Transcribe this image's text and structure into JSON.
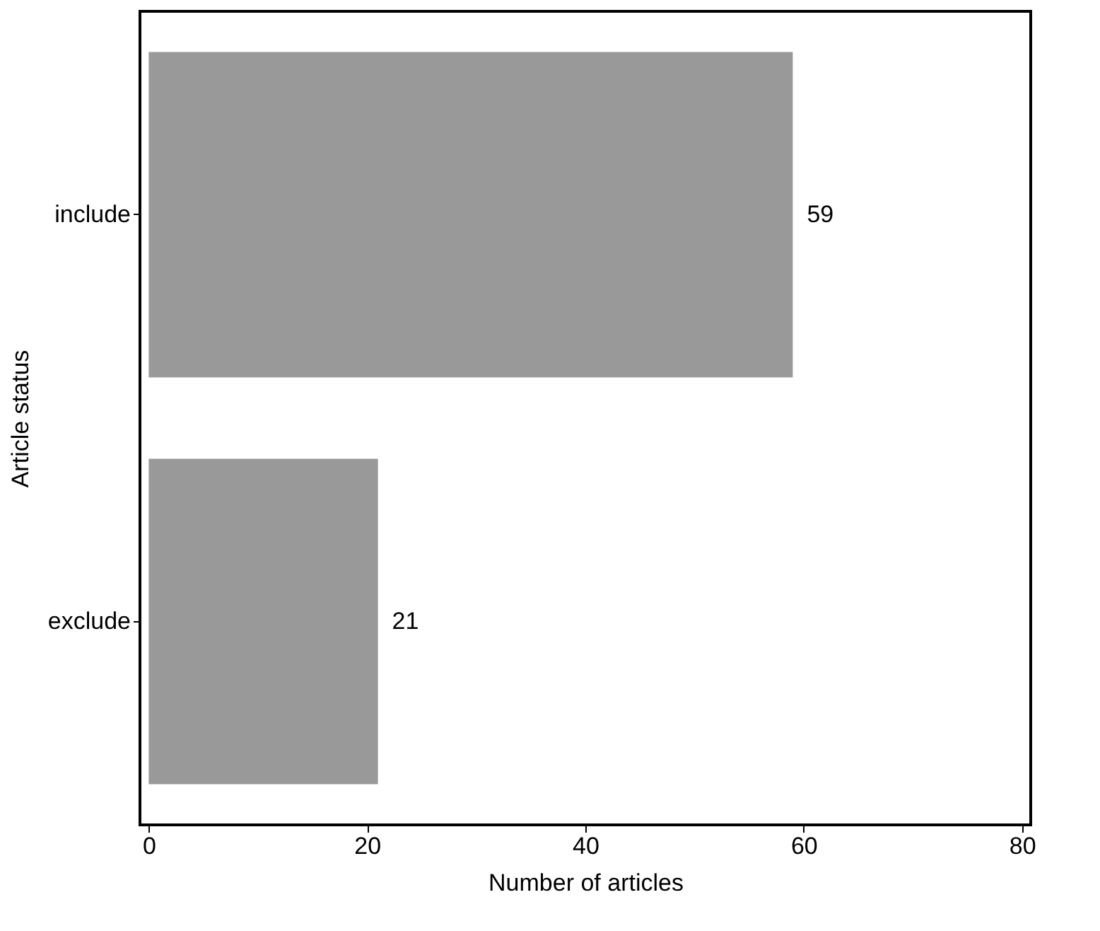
{
  "chart_data": {
    "type": "bar",
    "orientation": "horizontal",
    "categories": [
      "include",
      "exclude"
    ],
    "values": [
      59,
      21
    ],
    "color": "#999999",
    "xlabel": "Number of articles",
    "ylabel": "Article status",
    "xlim": [
      -0.8,
      80.8
    ],
    "xticks": [
      0,
      20,
      40,
      60,
      80
    ],
    "data_labels": true,
    "grid": false
  }
}
